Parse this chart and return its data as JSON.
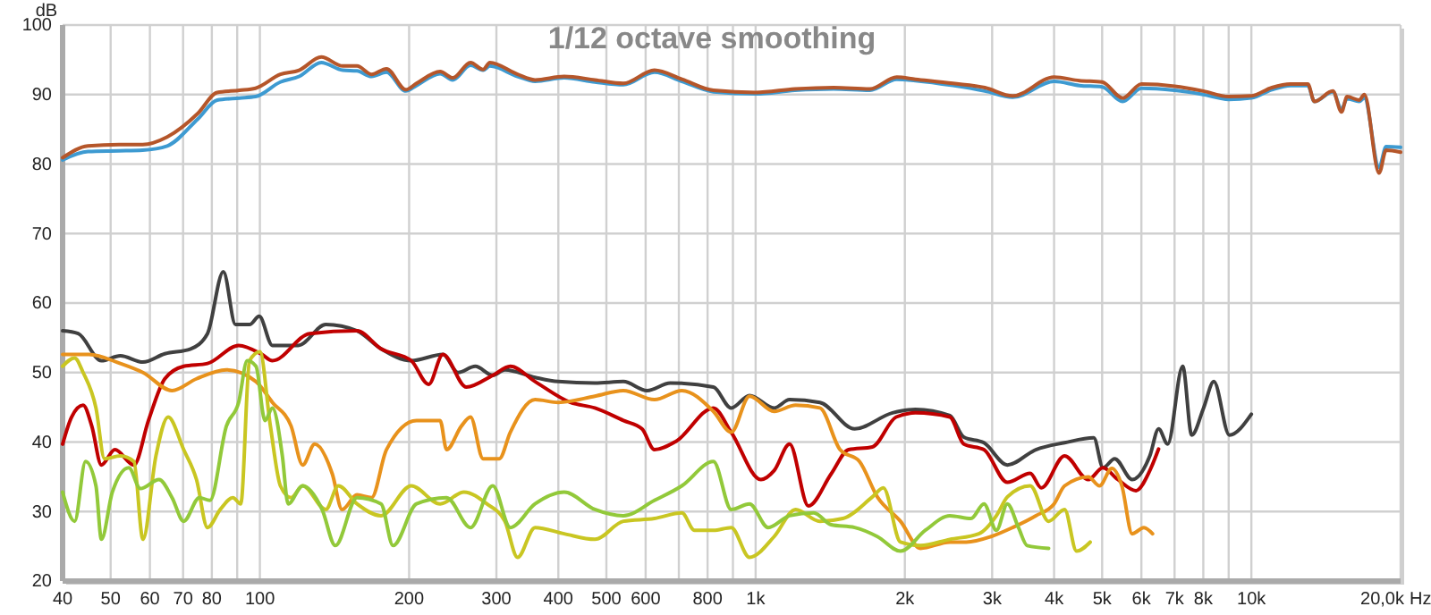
{
  "chart_data": {
    "type": "line",
    "title": "1/12 octave smoothing",
    "xlabel": "Hz",
    "ylabel": "dB",
    "log": "x",
    "grid": true,
    "xlim": [
      40,
      20000
    ],
    "ylim": [
      20,
      100
    ],
    "xticks": [
      40,
      50,
      60,
      70,
      80,
      {
        "value": 90,
        "label": null
      },
      100,
      200,
      300,
      400,
      500,
      600,
      {
        "value": 700,
        "label": null
      },
      800,
      {
        "value": 900,
        "label": null
      },
      {
        "value": 1000,
        "label": "1k"
      },
      {
        "value": 2000,
        "label": "2k"
      },
      {
        "value": 3000,
        "label": "3k"
      },
      {
        "value": 4000,
        "label": "4k"
      },
      {
        "value": 5000,
        "label": "5k"
      },
      {
        "value": 6000,
        "label": "6k"
      },
      {
        "value": 7000,
        "label": "7k"
      },
      {
        "value": 8000,
        "label": "8k"
      },
      {
        "value": 9000,
        "label": null
      },
      {
        "value": 10000,
        "label": "10k"
      },
      {
        "value": 20000,
        "label": "20,0k"
      }
    ],
    "yticks": [
      20,
      30,
      40,
      50,
      60,
      70,
      80,
      90,
      100
    ],
    "series": [
      {
        "color": "#3d9ad1",
        "x": [
          40,
          45,
          52,
          58,
          65,
          75,
          82,
          91,
          98,
          110,
          120,
          133,
          147,
          157,
          168,
          180,
          197,
          207,
          231,
          245,
          266,
          282,
          291,
          331,
          359,
          411,
          474,
          541,
          625,
          710,
          822,
          1000,
          1200,
          1436,
          1700,
          1926,
          2100,
          2500,
          2900,
          3300,
          4000,
          4500,
          5000,
          5500,
          6000,
          7000,
          8000,
          9000,
          10000,
          11000,
          12000,
          13000,
          13400,
          14600,
          15200,
          15600,
          16500,
          16900,
          18100,
          18700,
          20000
        ],
        "values": [
          80.6,
          81.8,
          81.9,
          82,
          82.6,
          86.5,
          89.2,
          89.5,
          89.7,
          91.8,
          92.6,
          94.6,
          93.5,
          93.4,
          92.6,
          93.2,
          90.5,
          91.3,
          93,
          92.1,
          94.2,
          93.5,
          94.1,
          92.6,
          91.9,
          92.4,
          91.8,
          91.4,
          93.2,
          91.9,
          90.4,
          90.1,
          90.6,
          90.8,
          90.6,
          92.2,
          92,
          91.3,
          90.5,
          89.6,
          91.9,
          91.3,
          91.1,
          89,
          90.9,
          90.6,
          90,
          89.3,
          89.5,
          90.7,
          91.3,
          91.3,
          89,
          90.4,
          87.9,
          89.4,
          89,
          89.5,
          79.5,
          82.5,
          82.4
        ]
      },
      {
        "color": "#b5562a",
        "x": [
          40,
          45,
          52,
          58,
          65,
          75,
          82,
          91,
          98,
          110,
          120,
          133,
          147,
          157,
          168,
          180,
          197,
          207,
          231,
          245,
          266,
          282,
          291,
          331,
          359,
          411,
          474,
          541,
          625,
          710,
          822,
          1000,
          1200,
          1436,
          1700,
          1926,
          2100,
          2500,
          2900,
          3300,
          4000,
          4500,
          5000,
          5500,
          6000,
          7000,
          8000,
          9000,
          10000,
          11000,
          12000,
          13000,
          13400,
          14600,
          15200,
          15600,
          16500,
          16900,
          18100,
          18700,
          20000
        ],
        "values": [
          80.9,
          82.6,
          82.8,
          82.8,
          83.9,
          87.3,
          90.3,
          90.6,
          90.9,
          92.9,
          93.5,
          95.4,
          94.1,
          94.1,
          92.9,
          93.7,
          90.7,
          91.6,
          93.3,
          92.4,
          94.6,
          93.6,
          94.6,
          92.9,
          92.1,
          92.6,
          92.1,
          91.6,
          93.5,
          92.2,
          90.6,
          90.3,
          90.8,
          91,
          90.8,
          92.5,
          92.2,
          91.6,
          91,
          89.8,
          92.5,
          92,
          91.8,
          89.5,
          91.5,
          91.2,
          90.5,
          89.7,
          89.8,
          91,
          91.5,
          91.5,
          89,
          90.5,
          87.5,
          89.7,
          89.2,
          90,
          78.7,
          82,
          81.7
        ]
      },
      {
        "color": "#404040",
        "x": [
          40,
          43,
          47.9,
          52.3,
          58.1,
          64.3,
          72.5,
          78.4,
          84.4,
          89.3,
          95.3,
          99.7,
          106,
          119.5,
          135.8,
          157,
          175.6,
          202,
          234,
          251,
          272,
          295,
          312,
          359,
          400,
          474,
          541,
          604,
          673,
          822,
          893,
          972,
          1090,
          1171,
          1348,
          1584,
          1888,
          2100,
          2465,
          2630,
          2888,
          3220,
          3675,
          4200,
          4810,
          5020,
          5300,
          5750,
          6240,
          6500,
          6780,
          7270,
          7580,
          8010,
          8400,
          9030,
          10000
        ],
        "values": [
          56,
          55.6,
          51.7,
          52.4,
          51.5,
          52.7,
          53.4,
          55.6,
          64.5,
          56.9,
          56.9,
          58.1,
          53.9,
          53.9,
          56.9,
          56,
          53.4,
          51.7,
          52.6,
          50,
          50.9,
          49.6,
          50.4,
          49.3,
          48.7,
          48.5,
          48.7,
          47.4,
          48.5,
          47.9,
          44.9,
          46.7,
          44.9,
          46.1,
          45.7,
          41.9,
          44.2,
          44.7,
          43.8,
          40.7,
          39.9,
          36.7,
          38.9,
          39.9,
          40.6,
          36.3,
          37.6,
          34.6,
          38,
          41.9,
          39.7,
          50.9,
          41,
          44.9,
          48.7,
          41,
          44
        ]
      },
      {
        "color": "#c00000",
        "x": [
          40,
          41.7,
          44,
          45.8,
          47.9,
          51,
          55.7,
          59.6,
          64.3,
          70.2,
          78.4,
          90.6,
          101,
          106,
          126,
          157,
          175.6,
          202,
          219,
          234,
          261,
          295,
          320,
          359,
          423,
          474,
          541,
          590,
          625,
          691,
          822,
          893,
          1025,
          1090,
          1171,
          1278,
          1420,
          1540,
          1720,
          1921,
          2100,
          2465,
          2630,
          2888,
          3220,
          3580,
          3770,
          4200,
          4690,
          5020,
          5380,
          5850,
          6240,
          6500
        ],
        "values": [
          39.7,
          43.6,
          45.3,
          42.3,
          36.7,
          38.9,
          36.7,
          43.1,
          49.1,
          50.9,
          51.3,
          53.9,
          52.6,
          51.7,
          55.6,
          56,
          53.4,
          51.7,
          48.3,
          52.6,
          47.9,
          49.6,
          50.9,
          48.7,
          45.7,
          44.9,
          43.1,
          41.9,
          38.9,
          40.1,
          44.9,
          41.4,
          34.6,
          35.9,
          39.7,
          30.8,
          35.4,
          38.9,
          39.3,
          43.6,
          44.2,
          43.6,
          39.7,
          38.9,
          34.2,
          35.5,
          33.4,
          38,
          34.6,
          36.3,
          34.6,
          33,
          35.9,
          39
        ]
      },
      {
        "color": "#e8921c",
        "x": [
          40,
          45.2,
          52.3,
          58.1,
          66.5,
          74.5,
          85.6,
          98.2,
          106,
          115.6,
          122,
          129,
          140,
          146.5,
          157,
          168,
          180,
          207,
          231,
          238,
          255,
          266,
          282,
          304,
          320,
          359,
          400,
          474,
          541,
          625,
          710,
          822,
          893,
          972,
          1090,
          1204,
          1348,
          1480,
          1620,
          1760,
          1960,
          2150,
          2465,
          2660,
          2985,
          3300,
          3675,
          4000,
          4200,
          4690,
          4940,
          5230,
          5480,
          5750,
          6070,
          6320
        ],
        "values": [
          52.6,
          52.6,
          51.3,
          50,
          47.4,
          49.1,
          50.4,
          48.7,
          45.7,
          42.3,
          36.7,
          39.7,
          35.4,
          30.3,
          32.4,
          32,
          38.9,
          43.1,
          43.1,
          38.9,
          42.3,
          43.6,
          37.6,
          37.6,
          41.4,
          46.1,
          45.7,
          46.6,
          47.4,
          46.1,
          47.4,
          44.4,
          41.4,
          46.6,
          44.4,
          45.3,
          44.9,
          38.9,
          37.2,
          32.1,
          28.6,
          24.7,
          25.6,
          25.6,
          26.4,
          27.7,
          29.4,
          31.1,
          33.7,
          35,
          33.7,
          36.2,
          33.7,
          26.8,
          27.7,
          26.8
        ]
      },
      {
        "color": "#c9c622",
        "x": [
          40,
          42.3,
          44,
          46.7,
          48.6,
          52.3,
          55.7,
          58.1,
          61.7,
          65.3,
          70.2,
          74.5,
          78.4,
          83.2,
          88.2,
          91.5,
          95.3,
          100,
          105,
          110,
          115.6,
          122,
          135.8,
          144,
          157,
          175.6,
          202,
          231,
          258,
          287,
          312,
          331,
          359,
          411,
          474,
          541,
          625,
          710,
          753,
          822,
          893,
          972,
          1090,
          1204,
          1348,
          1500,
          1720,
          1810,
          1960,
          2150,
          2465,
          2820,
          3060,
          3220,
          3580,
          3900,
          4200,
          4440,
          4730
        ],
        "values": [
          50.9,
          52.1,
          50,
          44.9,
          37.6,
          38,
          37.2,
          26,
          38,
          43.6,
          38.9,
          34.6,
          27.7,
          30.3,
          32,
          31.1,
          51.7,
          53,
          42.3,
          33.7,
          32,
          33.7,
          30.3,
          33.7,
          31.1,
          29.4,
          33.7,
          31.1,
          32.8,
          31.1,
          28.6,
          23.4,
          27.7,
          26.8,
          26,
          28.6,
          29,
          29.8,
          27.3,
          27.3,
          27.7,
          23.4,
          26.4,
          30.3,
          28.6,
          29,
          32.1,
          33.4,
          25.6,
          25.1,
          26,
          26.8,
          29.4,
          32.1,
          33.7,
          28.6,
          30.3,
          24.3,
          25.6
        ]
      },
      {
        "color": "#92c93a",
        "x": [
          40,
          42.3,
          44.5,
          46.7,
          47.9,
          50.4,
          54.4,
          57.4,
          62.6,
          66.5,
          70.2,
          75.5,
          79.3,
          85.6,
          90.6,
          94.3,
          98.2,
          102.4,
          106,
          111,
          114,
          122,
          133.5,
          142,
          157,
          175.6,
          185.6,
          207,
          238,
          266,
          295,
          320,
          359,
          411,
          474,
          541,
          625,
          710,
          822,
          893,
          972,
          1060,
          1171,
          1310,
          1420,
          1584,
          1760,
          1960,
          2200,
          2465,
          2720,
          2888,
          3060,
          3220,
          3390,
          3530,
          3900
        ],
        "values": [
          32.8,
          28.6,
          37.2,
          33.7,
          26,
          32.8,
          36.3,
          33.3,
          34.6,
          32,
          28.6,
          32,
          31.6,
          42.3,
          45.7,
          51.7,
          50.9,
          43.1,
          44.9,
          38,
          31.1,
          33.7,
          30.3,
          25.1,
          32,
          31.1,
          25.1,
          31.1,
          32,
          27.7,
          33.7,
          27.7,
          31.1,
          32.8,
          30.3,
          29.4,
          31.6,
          33.7,
          37.2,
          30.3,
          31.1,
          27.7,
          29.4,
          29.8,
          28.1,
          27.7,
          26.4,
          24.3,
          27.3,
          29.4,
          29,
          31.1,
          27.3,
          31.1,
          27.7,
          25.1,
          24.7
        ]
      }
    ]
  }
}
